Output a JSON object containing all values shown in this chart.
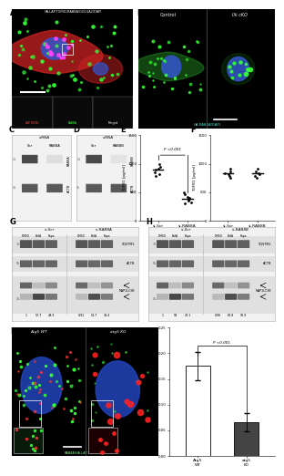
{
  "background_color": "#ffffff",
  "panel_label_fontsize": 6,
  "panel_A": {
    "title": "HA-LAP-TGFB1/RAB8A/GOLGA2/DAPI",
    "inset_labels": [
      "LAP-TGFB1",
      "RAB8A",
      "Merged"
    ],
    "inset_label_colors": [
      "#ff4444",
      "#44ff44",
      "#ffffff"
    ]
  },
  "panel_B": {
    "labels": [
      "Control",
      "Ilk cKO"
    ],
    "subtitle": "HA-RAB8A/DAPI",
    "subtitle_color": "#44ddcc"
  },
  "panel_C": {
    "title": "siRNA",
    "lane_labels": [
      "Scr",
      "RAB8A"
    ],
    "band1_label": "RAB8A",
    "band2_label": "ACTB",
    "kda1": "25",
    "kda2": "35"
  },
  "panel_D": {
    "title": "siRNA",
    "lane_labels": [
      "Scr",
      "RAB8B"
    ],
    "band1_label": "RAB8B",
    "band2_label": "ACTB",
    "kda1": "25",
    "kda2": "35"
  },
  "panel_E": {
    "sig_text": "P <0.001",
    "ylabel": "TGFB1 [pg/ml]",
    "ylim": [
      0,
      1500
    ],
    "yticks": [
      0,
      500,
      1000,
      1500
    ],
    "xlabel_labels": [
      "si-Scr",
      "si-RAB8A"
    ],
    "si_scr_data": [
      950,
      850,
      1000,
      820,
      920,
      780,
      900
    ],
    "si_rab8a_data": [
      380,
      310,
      460,
      350,
      320,
      490,
      420,
      400,
      370
    ],
    "si_scr_mean": 889,
    "si_rab8a_mean": 389
  },
  "panel_F": {
    "ylabel": "TGFB1 [pg/ml]",
    "ylim": [
      0,
      1500
    ],
    "yticks": [
      0,
      500,
      1000,
      1500
    ],
    "xlabel_labels": [
      "si-Scr",
      "si-RAB8B"
    ],
    "si_scr_data": [
      820,
      760,
      870,
      910,
      830,
      790
    ],
    "si_rab8b_data": [
      760,
      910,
      830,
      790,
      860,
      820
    ],
    "si_scr_mean": 830,
    "si_rab8b_mean": 828
  },
  "panel_G": {
    "letter": "G",
    "title_left": "si-Scr",
    "title_right": "si-RAB8A",
    "col_labels": [
      "DMSO",
      "BafA",
      "Rapa",
      "DMSO",
      "BafA",
      "Rapa"
    ],
    "kda_sqstm1": "72-",
    "kda_actb": "55-",
    "kda_lc3": "15-",
    "quant_values": [
      "1",
      "57.7",
      "49.9",
      "0.91",
      "54.7",
      "39.4"
    ],
    "lc3_label": "MAP1LC3B"
  },
  "panel_H": {
    "letter": "H",
    "title_left": "si-Scr",
    "title_right": "si-RAB8B",
    "col_labels": [
      "DMSO",
      "BafA",
      "Rapa",
      "DMSO",
      "BafA",
      "Rapa"
    ],
    "kda_sqstm1": "70-",
    "kda_actb": "55-",
    "kda_lc3": "15-",
    "quant_values": [
      "1",
      "59",
      "23.1",
      "0.96",
      "60.8",
      "18.9"
    ],
    "lc3_label": "MAP1LC3B"
  },
  "panel_I": {
    "title_left": "Atg5 WT",
    "title_right": "atg5 KO",
    "subtitle": "RAB8A/HA-LAP-TGFB1/DAPI"
  },
  "panel_J": {
    "sig_text": "P <0.001",
    "ylabel": "Pearson coefficient\nHA-TGFB1/RAB8A",
    "ylim": [
      0,
      0.25
    ],
    "yticks": [
      0.0,
      0.05,
      0.1,
      0.15,
      0.2,
      0.25
    ],
    "bar_labels": [
      "Atg5\nWT",
      "atg5\nKO"
    ],
    "bar_values": [
      0.175,
      0.065
    ],
    "bar_errors": [
      0.028,
      0.018
    ],
    "bar_colors": [
      "#ffffff",
      "#444444"
    ],
    "bar_edgecolor": "#000000"
  }
}
